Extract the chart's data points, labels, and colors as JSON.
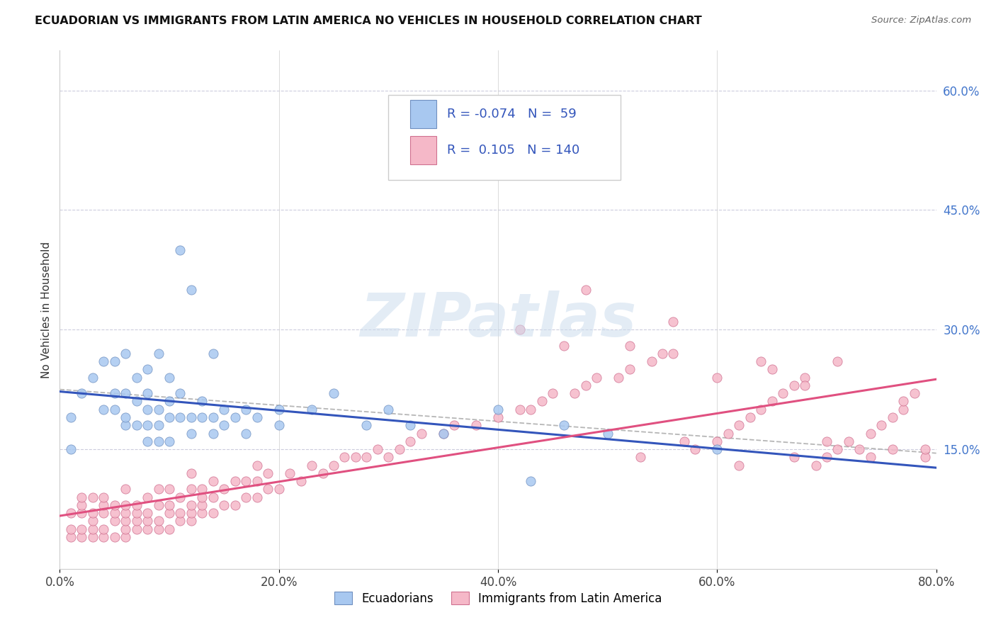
{
  "title": "ECUADORIAN VS IMMIGRANTS FROM LATIN AMERICA NO VEHICLES IN HOUSEHOLD CORRELATION CHART",
  "source_text": "Source: ZipAtlas.com",
  "ylabel": "No Vehicles in Household",
  "xlim": [
    0.0,
    0.8
  ],
  "ylim": [
    0.0,
    0.65
  ],
  "xtick_labels": [
    "0.0%",
    "20.0%",
    "40.0%",
    "60.0%",
    "80.0%"
  ],
  "xtick_values": [
    0.0,
    0.2,
    0.4,
    0.6,
    0.8
  ],
  "ytick_labels_right": [
    "60.0%",
    "45.0%",
    "30.0%",
    "15.0%"
  ],
  "ytick_values_right": [
    0.6,
    0.45,
    0.3,
    0.15
  ],
  "legend_label1": "Ecuadorians",
  "legend_label2": "Immigrants from Latin America",
  "r1": -0.074,
  "n1": 59,
  "r2": 0.105,
  "n2": 140,
  "color_blue": "#A8C8F0",
  "color_blue_edge": "#7090C0",
  "color_pink": "#F5B8C8",
  "color_pink_edge": "#D07090",
  "color_blue_line": "#3355BB",
  "color_pink_line": "#E05080",
  "watermark": "ZIPatlas",
  "blue_x": [
    0.01,
    0.01,
    0.02,
    0.03,
    0.04,
    0.04,
    0.05,
    0.05,
    0.05,
    0.06,
    0.06,
    0.06,
    0.06,
    0.07,
    0.07,
    0.07,
    0.08,
    0.08,
    0.08,
    0.08,
    0.08,
    0.09,
    0.09,
    0.09,
    0.09,
    0.1,
    0.1,
    0.1,
    0.1,
    0.11,
    0.11,
    0.11,
    0.12,
    0.12,
    0.12,
    0.13,
    0.13,
    0.14,
    0.14,
    0.14,
    0.15,
    0.15,
    0.16,
    0.17,
    0.17,
    0.18,
    0.2,
    0.2,
    0.23,
    0.25,
    0.28,
    0.3,
    0.32,
    0.35,
    0.4,
    0.43,
    0.46,
    0.5,
    0.6
  ],
  "blue_y": [
    0.15,
    0.19,
    0.22,
    0.24,
    0.2,
    0.26,
    0.2,
    0.22,
    0.26,
    0.18,
    0.19,
    0.22,
    0.27,
    0.18,
    0.21,
    0.24,
    0.16,
    0.18,
    0.2,
    0.22,
    0.25,
    0.16,
    0.18,
    0.2,
    0.27,
    0.16,
    0.19,
    0.21,
    0.24,
    0.19,
    0.22,
    0.4,
    0.17,
    0.19,
    0.35,
    0.19,
    0.21,
    0.17,
    0.19,
    0.27,
    0.18,
    0.2,
    0.19,
    0.17,
    0.2,
    0.19,
    0.18,
    0.2,
    0.2,
    0.22,
    0.18,
    0.2,
    0.18,
    0.17,
    0.2,
    0.11,
    0.18,
    0.17,
    0.15
  ],
  "pink_x": [
    0.01,
    0.01,
    0.01,
    0.02,
    0.02,
    0.02,
    0.02,
    0.02,
    0.03,
    0.03,
    0.03,
    0.03,
    0.03,
    0.04,
    0.04,
    0.04,
    0.04,
    0.04,
    0.05,
    0.05,
    0.05,
    0.05,
    0.06,
    0.06,
    0.06,
    0.06,
    0.06,
    0.06,
    0.07,
    0.07,
    0.07,
    0.07,
    0.08,
    0.08,
    0.08,
    0.08,
    0.09,
    0.09,
    0.09,
    0.09,
    0.1,
    0.1,
    0.1,
    0.1,
    0.11,
    0.11,
    0.11,
    0.12,
    0.12,
    0.12,
    0.12,
    0.12,
    0.13,
    0.13,
    0.13,
    0.13,
    0.14,
    0.14,
    0.14,
    0.15,
    0.15,
    0.16,
    0.16,
    0.17,
    0.17,
    0.18,
    0.18,
    0.18,
    0.19,
    0.19,
    0.2,
    0.21,
    0.22,
    0.23,
    0.24,
    0.25,
    0.26,
    0.27,
    0.28,
    0.29,
    0.3,
    0.31,
    0.32,
    0.33,
    0.35,
    0.36,
    0.38,
    0.4,
    0.42,
    0.43,
    0.44,
    0.45,
    0.47,
    0.48,
    0.49,
    0.51,
    0.52,
    0.54,
    0.55,
    0.56,
    0.58,
    0.6,
    0.61,
    0.62,
    0.63,
    0.64,
    0.65,
    0.66,
    0.67,
    0.68,
    0.69,
    0.7,
    0.71,
    0.72,
    0.74,
    0.75,
    0.76,
    0.77,
    0.77,
    0.78,
    0.79,
    0.79,
    0.48,
    0.52,
    0.56,
    0.6,
    0.64,
    0.42,
    0.46,
    0.7,
    0.65,
    0.68,
    0.71,
    0.74,
    0.76,
    0.53,
    0.57,
    0.62,
    0.67,
    0.73
  ],
  "pink_y": [
    0.04,
    0.05,
    0.07,
    0.04,
    0.05,
    0.07,
    0.08,
    0.09,
    0.04,
    0.05,
    0.06,
    0.07,
    0.09,
    0.04,
    0.05,
    0.07,
    0.08,
    0.09,
    0.04,
    0.06,
    0.07,
    0.08,
    0.04,
    0.05,
    0.06,
    0.07,
    0.08,
    0.1,
    0.05,
    0.06,
    0.07,
    0.08,
    0.05,
    0.06,
    0.07,
    0.09,
    0.05,
    0.06,
    0.08,
    0.1,
    0.05,
    0.07,
    0.08,
    0.1,
    0.06,
    0.07,
    0.09,
    0.06,
    0.07,
    0.08,
    0.1,
    0.12,
    0.07,
    0.08,
    0.09,
    0.1,
    0.07,
    0.09,
    0.11,
    0.08,
    0.1,
    0.08,
    0.11,
    0.09,
    0.11,
    0.09,
    0.11,
    0.13,
    0.1,
    0.12,
    0.1,
    0.12,
    0.11,
    0.13,
    0.12,
    0.13,
    0.14,
    0.14,
    0.14,
    0.15,
    0.14,
    0.15,
    0.16,
    0.17,
    0.17,
    0.18,
    0.18,
    0.19,
    0.2,
    0.2,
    0.21,
    0.22,
    0.22,
    0.23,
    0.24,
    0.24,
    0.25,
    0.26,
    0.27,
    0.27,
    0.15,
    0.16,
    0.17,
    0.18,
    0.19,
    0.2,
    0.21,
    0.22,
    0.23,
    0.24,
    0.13,
    0.14,
    0.15,
    0.16,
    0.17,
    0.18,
    0.19,
    0.2,
    0.21,
    0.22,
    0.14,
    0.15,
    0.35,
    0.28,
    0.31,
    0.24,
    0.26,
    0.3,
    0.28,
    0.16,
    0.25,
    0.23,
    0.26,
    0.14,
    0.15,
    0.14,
    0.16,
    0.13,
    0.14,
    0.15
  ]
}
